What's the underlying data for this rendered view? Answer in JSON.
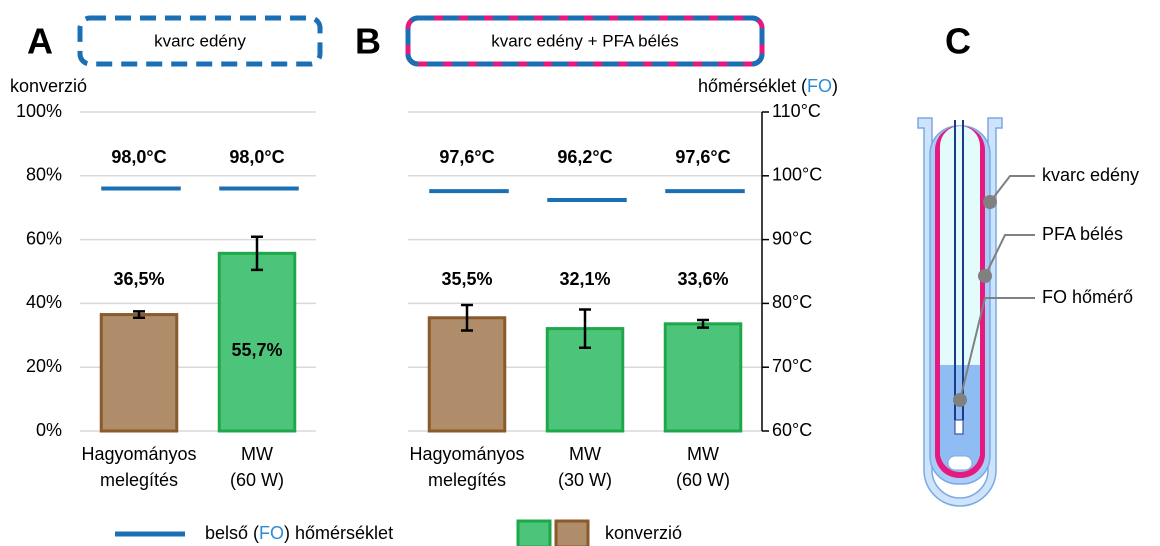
{
  "chart_data": [
    {
      "type": "bar",
      "panel": "A",
      "panel_title": "kvarc edény",
      "frame_colors": [
        "#1a6fb5"
      ],
      "categories": [
        [
          "Hagyományos",
          "melegítés"
        ],
        [
          "MW",
          "(60 W)"
        ]
      ],
      "ylabel": "konverzió",
      "ylim": [
        0,
        100
      ],
      "yticks": [
        {
          "value": 0,
          "label": "0%"
        },
        {
          "value": 20,
          "label": "20%"
        },
        {
          "value": 40,
          "label": "40%"
        },
        {
          "value": 60,
          "label": "60%"
        },
        {
          "value": 80,
          "label": "80%"
        },
        {
          "value": 100,
          "label": "100%"
        }
      ],
      "y2lim": [
        60,
        110
      ],
      "grid": true,
      "series": [
        {
          "values": [
            36.5,
            55.7
          ],
          "value_labels": [
            "36,5%",
            "55,7%"
          ],
          "errors": [
            1,
            5.2
          ],
          "colors": [
            "#b08d6a",
            "#4cc57a"
          ],
          "edge_colors": [
            "#8a5a2b",
            "#1ea84a"
          ]
        },
        {
          "axis": "y2",
          "values": [
            98.0,
            98.0
          ],
          "value_labels": [
            "98,0°C",
            "98,0°C"
          ],
          "color": "#1a6fb5"
        }
      ]
    },
    {
      "type": "bar",
      "panel": "B",
      "panel_title": "kvarc edény + PFA bélés",
      "frame_colors": [
        "#1a6fb5",
        "#e6197f"
      ],
      "categories": [
        [
          "Hagyományos",
          "melegítés"
        ],
        [
          "MW",
          "(30 W)"
        ],
        [
          "MW",
          "(60 W)"
        ]
      ],
      "y2label": [
        {
          "text": "hőmérséklet ("
        },
        {
          "text": "FO",
          "color": "#2e8bd6"
        },
        {
          "text": ")"
        }
      ],
      "ylim": [
        0,
        100
      ],
      "y2lim": [
        60,
        110
      ],
      "y2ticks": [
        {
          "value": 60,
          "label": "60°C"
        },
        {
          "value": 70,
          "label": "70°C"
        },
        {
          "value": 80,
          "label": "80°C"
        },
        {
          "value": 90,
          "label": "90°C"
        },
        {
          "value": 100,
          "label": "100°C"
        },
        {
          "value": 110,
          "label": "110°C"
        }
      ],
      "grid": true,
      "series": [
        {
          "values": [
            35.5,
            32.1,
            33.6
          ],
          "value_labels": [
            "35,5%",
            "32,1%",
            "33,6%"
          ],
          "errors": [
            4,
            6,
            1.2
          ],
          "colors": [
            "#b08d6a",
            "#4cc57a",
            "#4cc57a"
          ],
          "edge_colors": [
            "#8a5a2b",
            "#1ea84a",
            "#1ea84a"
          ]
        },
        {
          "axis": "y2",
          "values": [
            97.6,
            96.2,
            97.6
          ],
          "value_labels": [
            "97,6°C",
            "96,2°C",
            "97,6°C"
          ],
          "color": "#1a6fb5"
        }
      ]
    }
  ],
  "legend": {
    "line_label": [
      {
        "text": "belső ("
      },
      {
        "text": "FO",
        "color": "#2e8bd6"
      },
      {
        "text": ") hőmérséklet"
      }
    ],
    "line_color": "#1a6fb5",
    "bar_label": "konverzió",
    "bar_colors": [
      "#4cc57a",
      "#b08d6a"
    ],
    "bar_edges": [
      "#1ea84a",
      "#8a5a2b"
    ]
  },
  "diagram": {
    "panel": "C",
    "labels": [
      "kvarc edény",
      "PFA bélés",
      "FO hőmérő"
    ]
  }
}
